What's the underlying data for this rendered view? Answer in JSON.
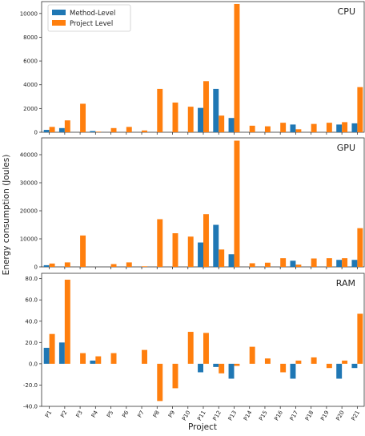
{
  "chart_data": {
    "type": "bar",
    "categories": [
      "P1",
      "P2",
      "P3",
      "P4",
      "P5",
      "P6",
      "P7",
      "P8",
      "P9",
      "P10",
      "P11",
      "P12",
      "P13",
      "P14",
      "P15",
      "P16",
      "P17",
      "P18",
      "P19",
      "P20",
      "P21"
    ],
    "xlabel": "Project",
    "ylabel": "Energy consumption (Joules)",
    "legend": {
      "position": "top-left",
      "entries": [
        "Method-Level",
        "Project Level"
      ]
    },
    "colors": {
      "method": "#1f77b4",
      "project": "#ff7f0e"
    },
    "panels": [
      {
        "label": "CPU",
        "ylim": [
          0,
          11000
        ],
        "yticks": [
          0,
          2000,
          4000,
          6000,
          8000,
          10000
        ],
        "ytick_labels": [
          "0",
          "2000",
          "4000",
          "6000",
          "8000",
          "10000"
        ],
        "series": [
          {
            "name": "Method-Level",
            "values": [
              200,
              350,
              0,
              100,
              0,
              0,
              0,
              0,
              0,
              0,
              2050,
              3650,
              1200,
              0,
              0,
              0,
              650,
              0,
              0,
              650,
              750
            ]
          },
          {
            "name": "Project Level",
            "values": [
              450,
              1000,
              2400,
              50,
              350,
              450,
              150,
              3650,
              2500,
              2150,
              4300,
              1400,
              10800,
              550,
              500,
              800,
              250,
              700,
              800,
              850,
              3800
            ]
          }
        ]
      },
      {
        "label": "GPU",
        "ylim": [
          0,
          46000
        ],
        "yticks": [
          0,
          10000,
          20000,
          30000,
          40000
        ],
        "ytick_labels": [
          "0",
          "10000",
          "20000",
          "30000",
          "40000"
        ],
        "series": [
          {
            "name": "Method-Level",
            "values": [
              600,
              0,
              0,
              0,
              0,
              0,
              0,
              0,
              0,
              0,
              8700,
              15000,
              4500,
              0,
              0,
              0,
              2200,
              0,
              0,
              2500,
              2500
            ]
          },
          {
            "name": "Project Level",
            "values": [
              1200,
              1600,
              11200,
              0,
              1000,
              1600,
              200,
              17000,
              12000,
              10800,
              18800,
              6200,
              45000,
              1300,
              1500,
              3100,
              800,
              3000,
              3100,
              3100,
              13800
            ]
          }
        ]
      },
      {
        "label": "RAM",
        "ylim": [
          -40,
          85
        ],
        "yticks": [
          -40,
          -20,
          0,
          20,
          40,
          60,
          80
        ],
        "ytick_labels": [
          "-40.0",
          "-20.0",
          "0.0",
          "20.0",
          "40.0",
          "60.0",
          "80.0"
        ],
        "series": [
          {
            "name": "Method-Level",
            "values": [
              15,
              20,
              0,
              3,
              0,
              0,
              0,
              0,
              0,
              0,
              -8,
              -3,
              -14,
              0,
              0,
              0,
              -14,
              0,
              0,
              -14,
              -4
            ]
          },
          {
            "name": "Project Level",
            "values": [
              28,
              79,
              10,
              7,
              10,
              0,
              13,
              -35,
              -23,
              30,
              29,
              -9,
              -2,
              16,
              5,
              -8,
              3,
              6,
              -4,
              3,
              47
            ]
          }
        ]
      }
    ]
  }
}
